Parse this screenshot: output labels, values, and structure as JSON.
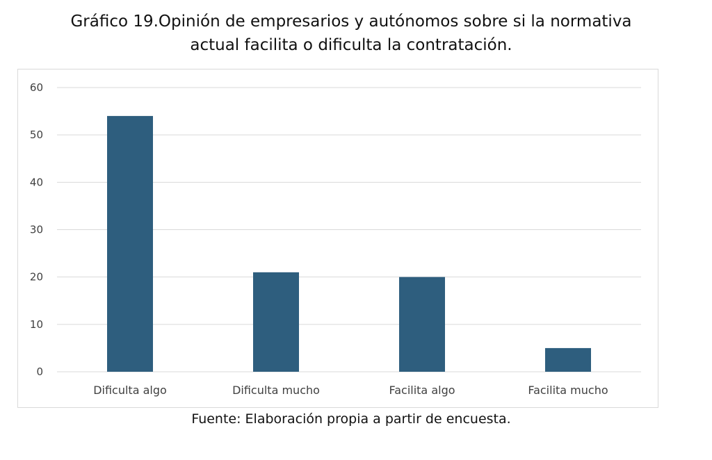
{
  "title_lines": [
    "Gráfico 19.Opinión de empresarios y autónomos sobre si la normativa",
    "actual facilita o dificulta la contratación."
  ],
  "source": "Fuente: Elaboración propia a partir de encuesta.",
  "colors": {
    "bar": "#2e5e7e",
    "grid": "#d9d9d9",
    "axis_text": "#404040"
  },
  "chart_data": {
    "type": "bar",
    "title": "Gráfico 19.Opinión de empresarios y autónomos sobre si la normativa actual facilita o dificulta la contratación.",
    "categories": [
      "Dificulta algo",
      "Dificulta mucho",
      "Facilita algo",
      "Facilita mucho"
    ],
    "values": [
      54,
      21,
      20,
      5
    ],
    "xlabel": "",
    "ylabel": "",
    "ylim": [
      0,
      60
    ],
    "yticks": [
      0,
      10,
      20,
      30,
      40,
      50,
      60
    ],
    "grid": true,
    "legend": "none"
  }
}
